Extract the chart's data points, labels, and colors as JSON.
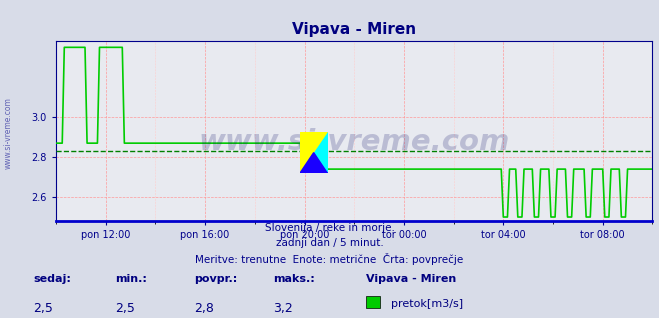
{
  "title": "Vipava - Miren",
  "title_color": "#000080",
  "bg_color": "#d8dce8",
  "plot_bg_color": "#e8eaf0",
  "grid_color_major": "#ff9999",
  "grid_color_minor": "#ffcccc",
  "avg_line_color": "#008000",
  "avg_line_value": 2.83,
  "line_color": "#00cc00",
  "line_width": 1.2,
  "tick_color": "#00008b",
  "watermark_color": "#00008b",
  "watermark_text": "www.si-vreme.com",
  "ylim": [
    2.48,
    3.38
  ],
  "yticks": [
    2.6,
    2.8,
    3.0
  ],
  "xtick_positions": [
    24,
    72,
    120,
    168,
    216,
    264
  ],
  "xtick_labels": [
    "pon 12:00",
    "pon 16:00",
    "pon 20:00",
    "tor 00:00",
    "tor 04:00",
    "tor 08:00"
  ],
  "footer_line1": "Slovenija / reke in morje.",
  "footer_line2": "zadnji dan / 5 minut.",
  "footer_line3": "Meritve: trenutne  Enote: metrične  Črta: povprečje",
  "footer_color": "#00008b",
  "legend_labels": [
    "sedaj:",
    "min.:",
    "povpr.:",
    "maks.:"
  ],
  "legend_values": [
    "2,5",
    "2,5",
    "2,8",
    "3,2"
  ],
  "legend_series_name": "Vipava - Miren",
  "legend_series_color": "#00cc00",
  "legend_series_unit": "pretok[m3/s]"
}
